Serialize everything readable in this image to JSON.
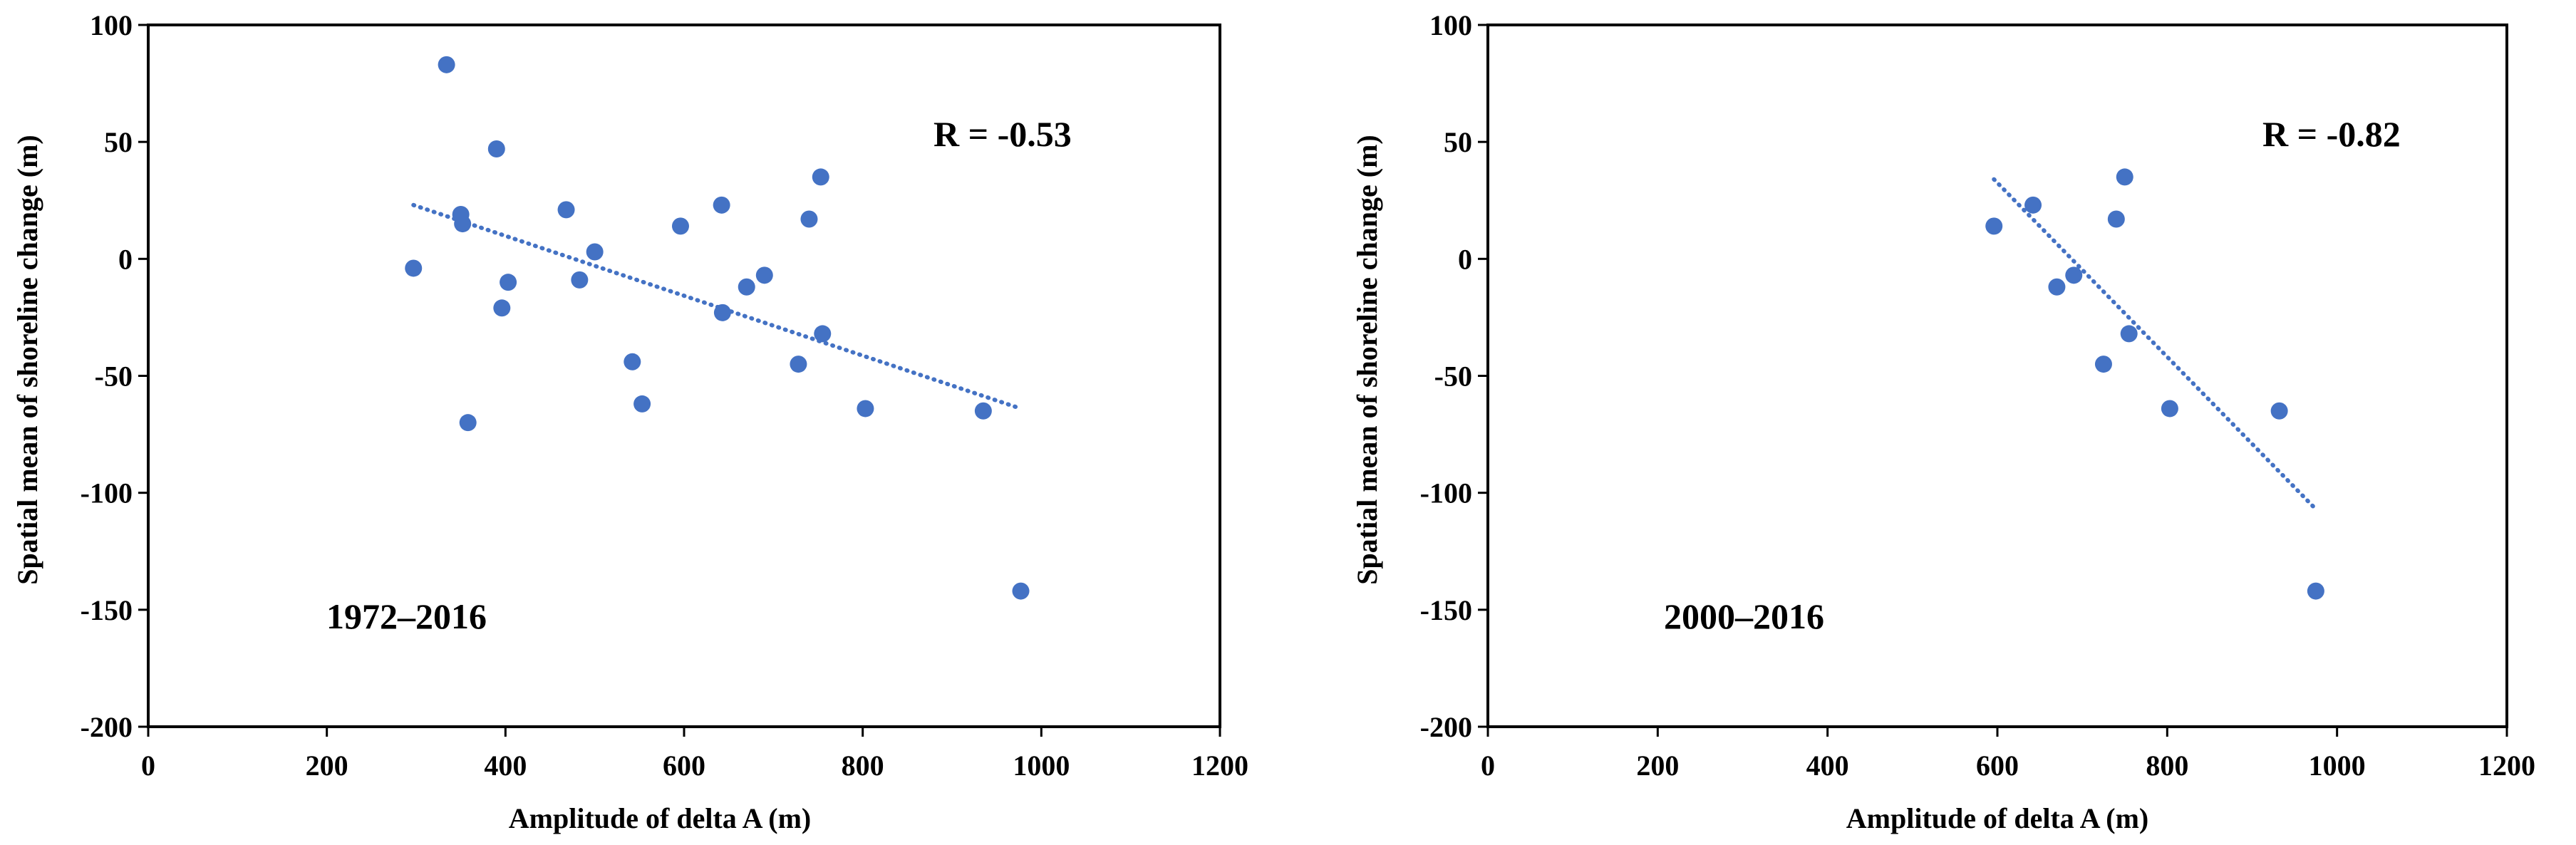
{
  "colors": {
    "marker": "#4472C4",
    "trendline": "#4472C4",
    "axis": "#000000"
  },
  "chart_data": [
    {
      "type": "scatter",
      "title": "",
      "xlabel": "Amplitude  of delta  A (m)",
      "ylabel": "Spatial  mean of  shoreline  change  (m)",
      "xlim": [
        0,
        1200
      ],
      "ylim": [
        -200,
        100
      ],
      "xticks": [
        0,
        200,
        400,
        600,
        800,
        1000,
        1200
      ],
      "yticks": [
        -200,
        -150,
        -100,
        -50,
        0,
        50,
        100
      ],
      "grid": false,
      "annotations": {
        "r_value": "R = -0.53",
        "period": "1972–2016"
      },
      "points": [
        {
          "x": 297,
          "y": -4
        },
        {
          "x": 334,
          "y": 83
        },
        {
          "x": 350,
          "y": 19
        },
        {
          "x": 352,
          "y": 15
        },
        {
          "x": 358,
          "y": -70
        },
        {
          "x": 390,
          "y": 47
        },
        {
          "x": 396,
          "y": -21
        },
        {
          "x": 403,
          "y": -10
        },
        {
          "x": 468,
          "y": 21
        },
        {
          "x": 483,
          "y": -9
        },
        {
          "x": 500,
          "y": 3
        },
        {
          "x": 542,
          "y": -44
        },
        {
          "x": 553,
          "y": -62
        },
        {
          "x": 596,
          "y": 14
        },
        {
          "x": 642,
          "y": 23
        },
        {
          "x": 643,
          "y": -23
        },
        {
          "x": 670,
          "y": -12
        },
        {
          "x": 690,
          "y": -7
        },
        {
          "x": 728,
          "y": -45
        },
        {
          "x": 740,
          "y": 17
        },
        {
          "x": 753,
          "y": 35
        },
        {
          "x": 755,
          "y": -32
        },
        {
          "x": 803,
          "y": -64
        },
        {
          "x": 935,
          "y": -65
        },
        {
          "x": 977,
          "y": -142
        }
      ],
      "trendline": {
        "style": "dotted",
        "x": [
          297,
          977
        ],
        "y": [
          23,
          -64
        ]
      }
    },
    {
      "type": "scatter",
      "title": "",
      "xlabel": "Amplitude  of delta A (m)",
      "ylabel": "Spatial  mean of  shoreline  change  (m)",
      "xlim": [
        0,
        1200
      ],
      "ylim": [
        -200,
        100
      ],
      "xticks": [
        0,
        200,
        400,
        600,
        800,
        1000,
        1200
      ],
      "yticks": [
        -200,
        -150,
        -100,
        -50,
        0,
        50,
        100
      ],
      "grid": false,
      "annotations": {
        "r_value": "R = -0.82",
        "period": "2000–2016"
      },
      "points": [
        {
          "x": 596,
          "y": 14
        },
        {
          "x": 642,
          "y": 23
        },
        {
          "x": 670,
          "y": -12
        },
        {
          "x": 690,
          "y": -7
        },
        {
          "x": 725,
          "y": -45
        },
        {
          "x": 740,
          "y": 17
        },
        {
          "x": 750,
          "y": 35
        },
        {
          "x": 755,
          "y": -32
        },
        {
          "x": 803,
          "y": -64
        },
        {
          "x": 932,
          "y": -65
        },
        {
          "x": 975,
          "y": -142
        }
      ],
      "trendline": {
        "style": "dotted",
        "x": [
          596,
          975
        ],
        "y": [
          34,
          -107
        ]
      }
    }
  ]
}
